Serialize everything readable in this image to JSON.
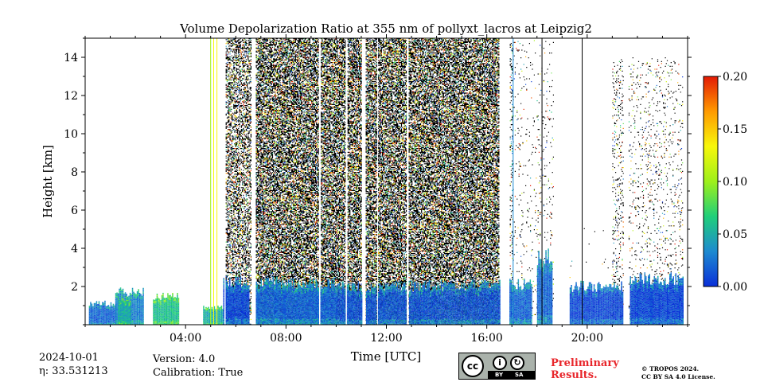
{
  "chart_data": {
    "type": "heatmap",
    "title": "Volume Depolarization Ratio at 355 nm of pollyxt_lacros at Leipzig2",
    "xlabel": "Time [UTC]",
    "ylabel": "Height [km]",
    "x_ticks": [
      "04:00",
      "08:00",
      "12:00",
      "16:00",
      "20:00"
    ],
    "x_tick_hours": [
      4,
      8,
      12,
      16,
      20
    ],
    "xlim_hours": [
      0,
      24
    ],
    "y_ticks": [
      2,
      4,
      6,
      8,
      10,
      12,
      14
    ],
    "ylim_km": [
      0,
      15
    ],
    "colorbar": {
      "ticks": [
        "0.00",
        "0.05",
        "0.10",
        "0.15",
        "0.20"
      ],
      "values": [
        0.0,
        0.05,
        0.1,
        0.15,
        0.2
      ],
      "range": [
        0.0,
        0.2
      ],
      "colormap": [
        "#0a2fd8",
        "#1d8ad0",
        "#1fcf7a",
        "#9ef01a",
        "#f7f70a",
        "#ff9a00",
        "#e31a05"
      ]
    },
    "profiles": [
      {
        "start_h": 0.15,
        "end_h": 1.2,
        "bottom_top_km": 1.1,
        "mid_depol": 0.02
      },
      {
        "start_h": 1.2,
        "end_h": 2.3,
        "bottom_top_km": 1.7,
        "mid_depol": 0.03
      },
      {
        "start_h": 1.3,
        "end_h": 1.8,
        "bottom_top_km": 1.35,
        "mid_depol": 0.05
      },
      {
        "start_h": 2.7,
        "end_h": 3.7,
        "bottom_top_km": 1.5,
        "mid_depol": 0.06
      },
      {
        "start_h": 4.7,
        "end_h": 5.5,
        "bottom_top_km": 0.9,
        "mid_depol": 0.05
      },
      {
        "start_h": 5.5,
        "end_h": 6.5,
        "bottom_top_km": 2.3,
        "mid_depol": 0.01
      },
      {
        "start_h": 6.8,
        "end_h": 10.0,
        "bottom_top_km": 2.2,
        "mid_depol": 0.02
      },
      {
        "start_h": 10.0,
        "end_h": 13.5,
        "bottom_top_km": 2.0,
        "mid_depol": 0.015
      },
      {
        "start_h": 13.5,
        "end_h": 16.5,
        "bottom_top_km": 2.1,
        "mid_depol": 0.015
      },
      {
        "start_h": 16.9,
        "end_h": 17.8,
        "bottom_top_km": 2.1,
        "mid_depol": 0.02
      },
      {
        "start_h": 18.0,
        "end_h": 18.6,
        "bottom_top_km": 3.5,
        "mid_depol": 0.02
      },
      {
        "start_h": 19.3,
        "end_h": 21.4,
        "bottom_top_km": 2.0,
        "mid_depol": 0.01
      },
      {
        "start_h": 21.7,
        "end_h": 23.8,
        "bottom_top_km": 2.4,
        "mid_depol": 0.01
      }
    ],
    "noise_zones": [
      {
        "start_h": 5.6,
        "end_h": 6.6,
        "top_km": 15,
        "density": 0.45
      },
      {
        "start_h": 6.8,
        "end_h": 16.5,
        "top_km": 15,
        "density": 0.62
      },
      {
        "start_h": 16.5,
        "end_h": 17.0,
        "top_km": 15,
        "density": 0.18
      },
      {
        "start_h": 17.0,
        "end_h": 18.8,
        "top_km": 15,
        "density": 0.03
      },
      {
        "start_h": 18.8,
        "end_h": 21.0,
        "top_km": 6,
        "density": 0.015
      },
      {
        "start_h": 21.0,
        "end_h": 21.5,
        "top_km": 14,
        "density": 0.12
      },
      {
        "start_h": 21.5,
        "end_h": 23.8,
        "top_km": 14,
        "density": 0.06
      }
    ],
    "gaps_h": [
      [
        5.5,
        5.58
      ],
      [
        6.65,
        6.75
      ],
      [
        9.3,
        9.36
      ],
      [
        10.35,
        10.42
      ],
      [
        11.0,
        11.15
      ],
      [
        11.6,
        11.65
      ],
      [
        12.8,
        12.86
      ],
      [
        16.5,
        16.9
      ],
      [
        18.65,
        19.25
      ],
      [
        21.45,
        21.65
      ]
    ],
    "vertical_lines": [
      {
        "h": 5.0,
        "color": "#9ef01a"
      },
      {
        "h": 5.12,
        "color": "#f7f70a"
      },
      {
        "h": 5.25,
        "color": "#f7f70a"
      },
      {
        "h": 17.05,
        "color": "#1d8ad0"
      },
      {
        "h": 18.2,
        "color": "#000000"
      },
      {
        "h": 19.8,
        "color": "#000000"
      }
    ]
  },
  "info": {
    "date": "2024-10-01",
    "eta": "η: 33.531213",
    "version": "Version: 4.0",
    "calibration": "Calibration: True"
  },
  "footer": {
    "preliminary_line1": "Preliminary",
    "preliminary_line2": "Results.",
    "copyright": "© TROPOS 2024.",
    "license": "CC BY SA 4.0 License.",
    "cc_badge": {
      "cc": "cc",
      "by": "BY",
      "sa": "SA",
      "icon_by": "person-icon",
      "icon_sa": "share-alike-icon"
    }
  }
}
